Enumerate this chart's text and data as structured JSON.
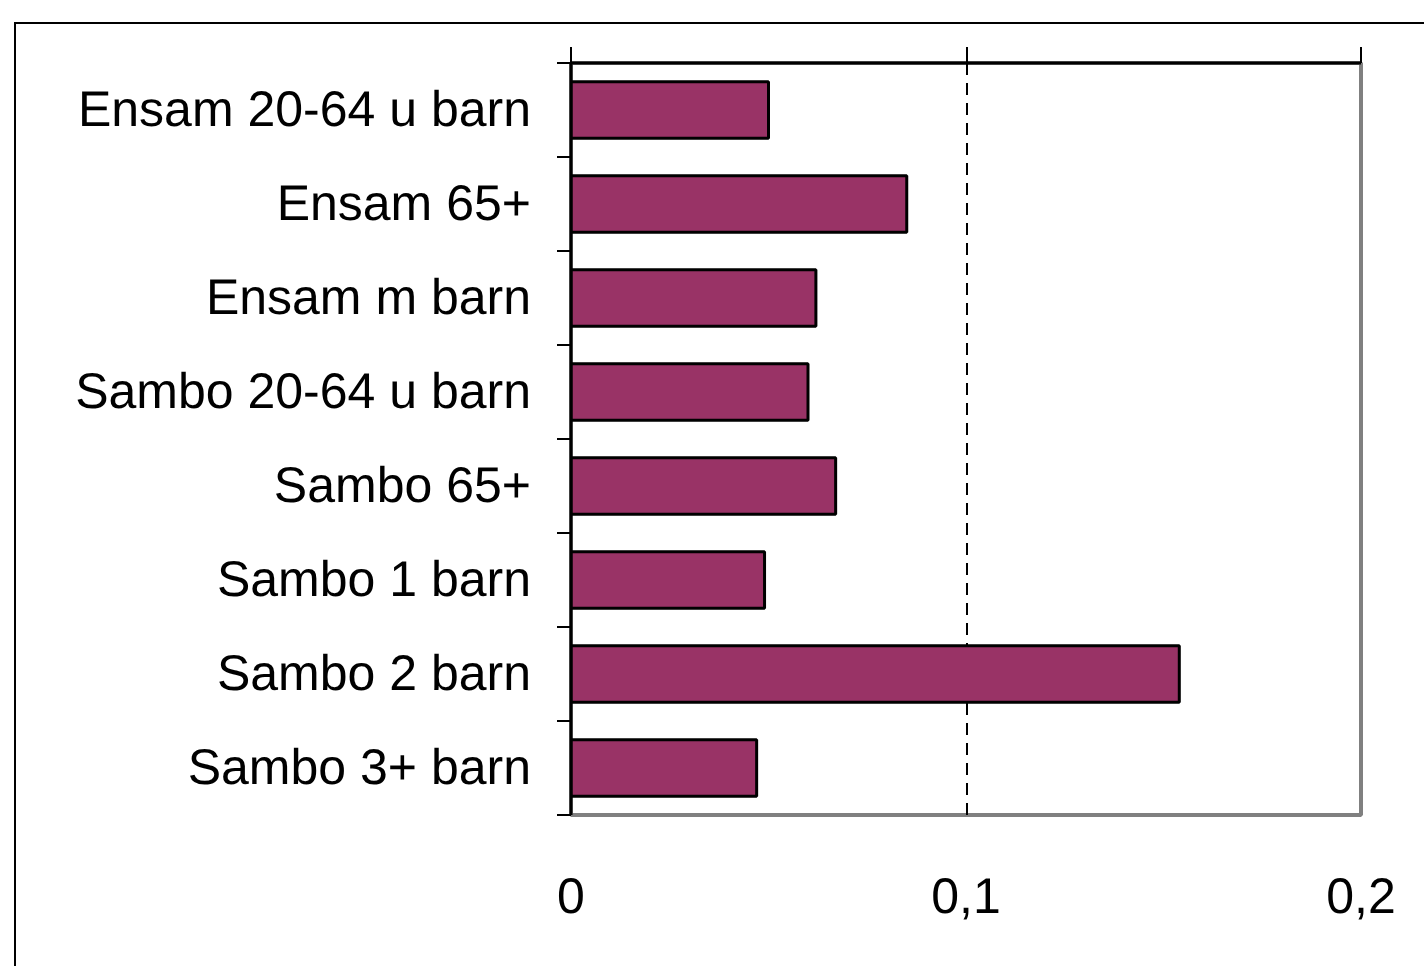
{
  "chart_data": {
    "type": "bar",
    "orientation": "horizontal",
    "categories": [
      "Ensam 20-64 u barn",
      "Ensam 65+",
      "Ensam m barn",
      "Sambo 20-64 u barn",
      "Sambo 65+",
      "Sambo 1 barn",
      "Sambo 2 barn",
      "Sambo 3+ barn"
    ],
    "values": [
      0.05,
      0.085,
      0.062,
      0.06,
      0.067,
      0.049,
      0.154,
      0.047
    ],
    "color": "#993366",
    "xlim": [
      0,
      0.2
    ],
    "xticks": [
      0,
      {
        "value": 0.1,
        "label": "0,1"
      },
      {
        "value": 0.2,
        "label": "0,2"
      }
    ],
    "grid": "x"
  }
}
